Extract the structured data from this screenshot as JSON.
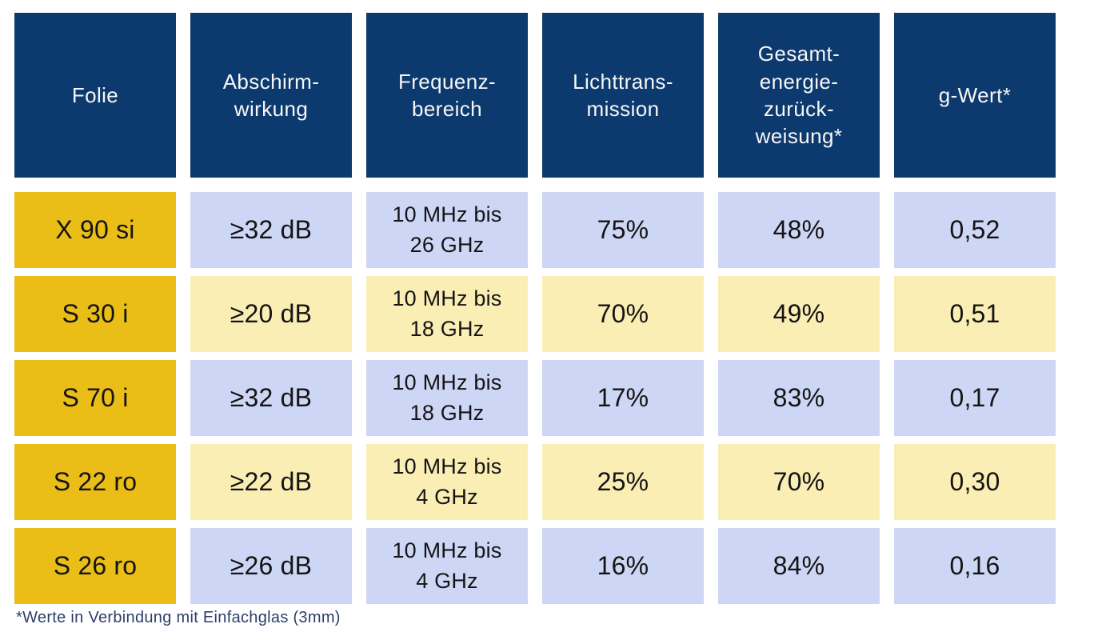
{
  "colors": {
    "header_bg": "#0d3a6e",
    "header_text": "#f6f6f6",
    "row_label_bg": "#eabd17",
    "row_tint_blue": "#cdd7f5",
    "row_tint_yellow": "#faeeb5",
    "cell_text": "#141414",
    "footnote_text": "#2e3e68",
    "page_bg": "#ffffff"
  },
  "table": {
    "columns": [
      {
        "id": "folie",
        "label": "Folie"
      },
      {
        "id": "abschirmwirkung",
        "label": "Abschirm-\nwirkung"
      },
      {
        "id": "frequenzbereich",
        "label": "Frequenz-\nbereich"
      },
      {
        "id": "lichttransmission",
        "label": "Lichttrans-\nmission"
      },
      {
        "id": "gesamtenergiezurueckweisung",
        "label": "Gesamt-\nenergie-\nzurück-\nweisung*"
      },
      {
        "id": "gwert",
        "label": "g-Wert*"
      }
    ],
    "rows": [
      [
        "X 90 si",
        "≥32 dB",
        "10 MHz bis\n26 GHz",
        "75%",
        "48%",
        "0,52"
      ],
      [
        "S 30 i",
        "≥20 dB",
        "10 MHz bis\n18 GHz",
        "70%",
        "49%",
        "0,51"
      ],
      [
        "S 70 i",
        "≥32 dB",
        "10 MHz bis\n18 GHz",
        "17%",
        "83%",
        "0,17"
      ],
      [
        "S 22 ro",
        "≥22 dB",
        "10 MHz bis\n4 GHz",
        "25%",
        "70%",
        "0,30"
      ],
      [
        "S 26 ro",
        "≥26 dB",
        "10 MHz bis\n4 GHz",
        "16%",
        "84%",
        "0,16"
      ]
    ],
    "footnote": "*Werte in Verbindung mit Einfachglas (3mm)"
  },
  "chart_data": {
    "type": "table",
    "title": "",
    "columns": [
      "Folie",
      "Abschirmwirkung",
      "Frequenzbereich",
      "Lichttransmission",
      "Gesamtenergiezurückweisung*",
      "g-Wert*"
    ],
    "rows": [
      [
        "X 90 si",
        "≥32 dB",
        "10 MHz bis 26 GHz",
        "75%",
        "48%",
        "0,52"
      ],
      [
        "S 30 i",
        "≥20 dB",
        "10 MHz bis 18 GHz",
        "70%",
        "49%",
        "0,51"
      ],
      [
        "S 70 i",
        "≥32 dB",
        "10 MHz bis 18 GHz",
        "17%",
        "83%",
        "0,17"
      ],
      [
        "S 22 ro",
        "≥22 dB",
        "10 MHz bis 4 GHz",
        "25%",
        "70%",
        "0,30"
      ],
      [
        "S 26 ro",
        "≥26 dB",
        "10 MHz bis 4 GHz",
        "16%",
        "84%",
        "0,16"
      ]
    ],
    "footnote": "*Werte in Verbindung mit Einfachglas (3mm)"
  }
}
